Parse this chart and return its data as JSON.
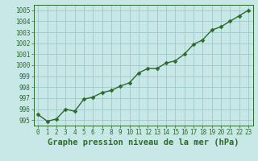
{
  "x": [
    0,
    1,
    2,
    3,
    4,
    5,
    6,
    7,
    8,
    9,
    10,
    11,
    12,
    13,
    14,
    15,
    16,
    17,
    18,
    19,
    20,
    21,
    22,
    23
  ],
  "y": [
    995.5,
    994.9,
    995.1,
    996.0,
    995.8,
    996.9,
    997.1,
    997.5,
    997.7,
    998.1,
    998.4,
    999.3,
    999.7,
    999.7,
    1000.2,
    1000.4,
    1001.0,
    1001.9,
    1002.3,
    1003.2,
    1003.5,
    1004.0,
    1004.5,
    1005.0
  ],
  "line_color": "#2d6a2d",
  "marker_color": "#2d6a2d",
  "bg_color": "#c8e8e8",
  "grid_color": "#a0c8c8",
  "xlabel": "Graphe pression niveau de la mer (hPa)",
  "ylim": [
    994.5,
    1005.5
  ],
  "yticks": [
    995,
    996,
    997,
    998,
    999,
    1000,
    1001,
    1002,
    1003,
    1004,
    1005
  ],
  "xticks": [
    0,
    1,
    2,
    3,
    4,
    5,
    6,
    7,
    8,
    9,
    10,
    11,
    12,
    13,
    14,
    15,
    16,
    17,
    18,
    19,
    20,
    21,
    22,
    23
  ],
  "tick_label_fontsize": 5.5,
  "xlabel_fontsize": 7.5,
  "line_width": 1.0,
  "marker_size": 2.5
}
